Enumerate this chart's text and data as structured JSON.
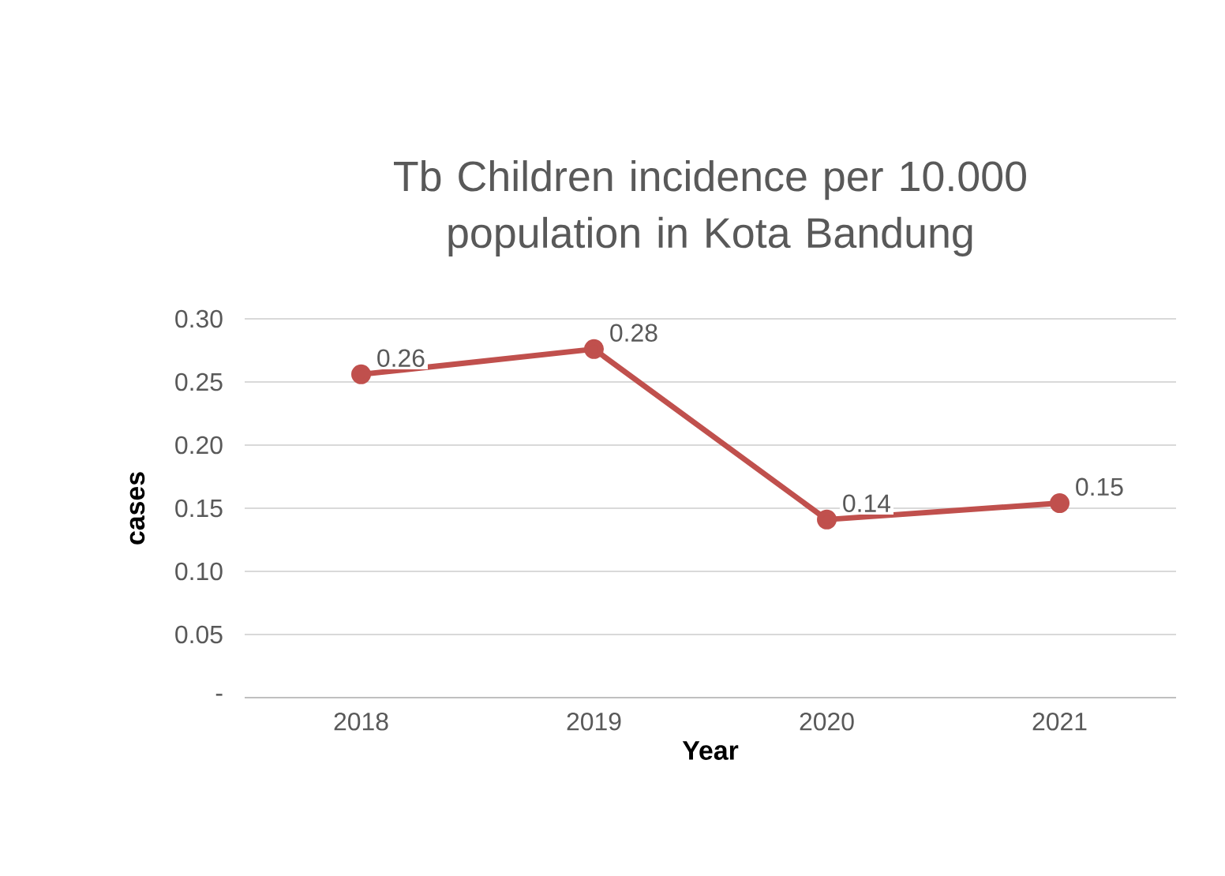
{
  "chart_data": {
    "type": "line",
    "title": "Tb Children incidence per 10.000 population in Kota Bandung",
    "xlabel": "Year",
    "ylabel": "cases",
    "categories": [
      "2018",
      "2019",
      "2020",
      "2021"
    ],
    "values": [
      0.256,
      0.276,
      0.141,
      0.154
    ],
    "value_labels": [
      "0.26",
      "0.28",
      "0.14",
      "0.15"
    ],
    "color": "#c0504d",
    "marker": "circle",
    "line_style": "solid",
    "grid": "y",
    "ylim": [
      0,
      0.3
    ],
    "yticks": [
      {
        "value": 0,
        "label": "-"
      },
      {
        "value": 0.05,
        "label": "0.05"
      },
      {
        "value": 0.1,
        "label": "0.10"
      },
      {
        "value": 0.15,
        "label": "0.15"
      },
      {
        "value": 0.2,
        "label": "0.20"
      },
      {
        "value": 0.25,
        "label": "0.25"
      },
      {
        "value": 0.3,
        "label": "0.30"
      }
    ]
  }
}
